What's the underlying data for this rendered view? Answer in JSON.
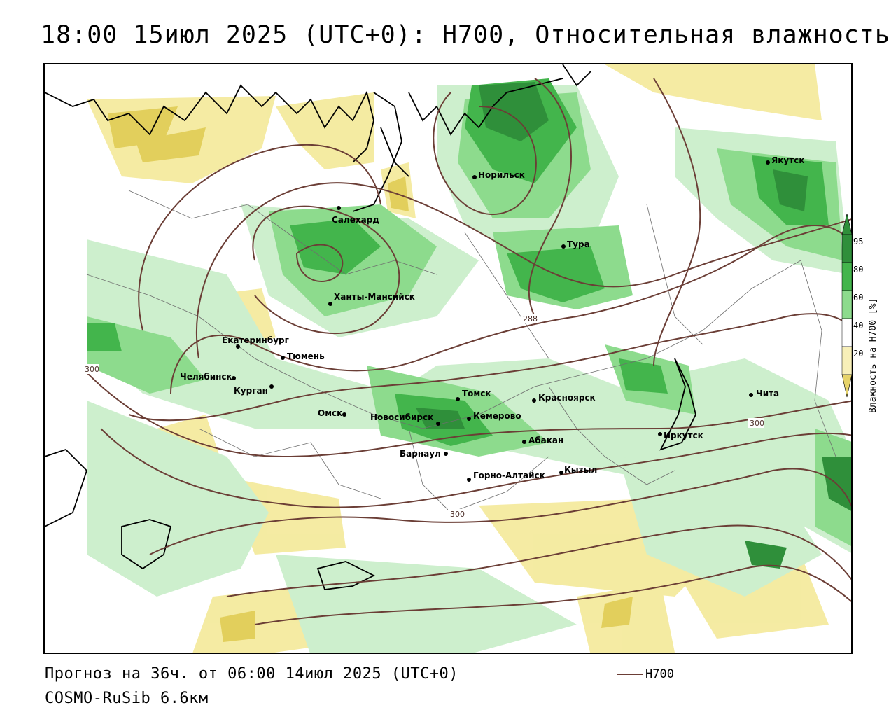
{
  "title": "18:00 15июл 2025 (UTC+0): H700, Относительная влажность",
  "footer": {
    "forecast": "Прогноз на 36ч. от 06:00 14июл 2025 (UTC+0)",
    "model": "COSMO-RuSib 6.6км"
  },
  "legend": {
    "contour_label": "H700"
  },
  "colorbar": {
    "title": "Влажность на H700 [%]",
    "ticks": [
      "95",
      "80",
      "60",
      "40",
      "20"
    ],
    "colors": [
      "#2f8f3a",
      "#43b54c",
      "#8ddb8d",
      "#cdefcd",
      "#ffffff",
      "#f7efb8",
      "#e6d36a"
    ]
  },
  "map": {
    "cities": [
      {
        "name": "Норильск"
      },
      {
        "name": "Якутск"
      },
      {
        "name": "Салехард"
      },
      {
        "name": "Тура"
      },
      {
        "name": "Ханты-Мансийск"
      },
      {
        "name": "Екатеринбург"
      },
      {
        "name": "Тюмень"
      },
      {
        "name": "Челябинск"
      },
      {
        "name": "Курган"
      },
      {
        "name": "Омск"
      },
      {
        "name": "Новосибирск"
      },
      {
        "name": "Томск"
      },
      {
        "name": "Кемерово"
      },
      {
        "name": "Красноярск"
      },
      {
        "name": "Барнаул"
      },
      {
        "name": "Абакан"
      },
      {
        "name": "Горно-Алтайск"
      },
      {
        "name": "Кызыл"
      },
      {
        "name": "Иркутск"
      },
      {
        "name": "Чита"
      }
    ],
    "contour_labels": [
      "288",
      "300",
      "300",
      "300"
    ]
  }
}
